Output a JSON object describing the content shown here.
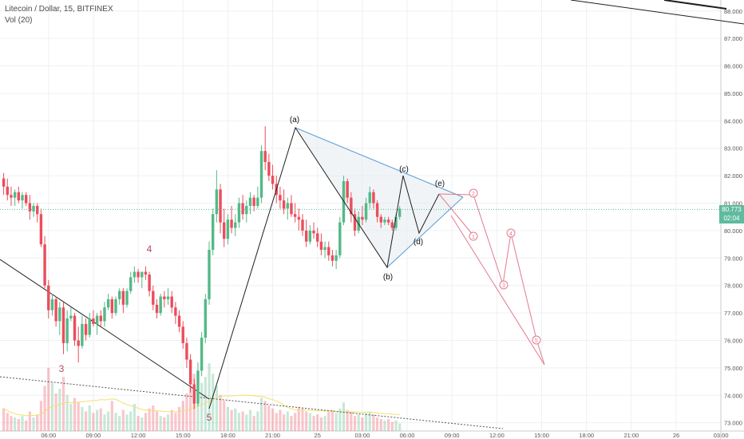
{
  "header": {
    "title": "Litecoin / Dollar, 15, BITFINEX",
    "volume_label": "Vol (20)"
  },
  "price_tags": {
    "last_price": "80.773",
    "countdown": "02:04",
    "color": "#5fba9e"
  },
  "colors": {
    "up": "#53b987",
    "down": "#eb4d5c",
    "wave_black": "#1f1f1f",
    "triangle_blue": "#5b9bd5",
    "projection_red": "#e4798d",
    "wave_label": "#b44a65",
    "vol_ma": "#f3e06c",
    "grid": "#eef0f3"
  },
  "chart_data": {
    "type": "candlestick",
    "title": "Litecoin / Dollar, 15, BITFINEX",
    "ylim": [
      72.7,
      88.4
    ],
    "y_ticks": [
      "73.000",
      "74.000",
      "75.000",
      "76.000",
      "77.000",
      "78.000",
      "79.000",
      "80.000",
      "81.000",
      "82.000",
      "83.000",
      "84.000",
      "85.000",
      "86.000",
      "87.000",
      "88.000"
    ],
    "y_tick_values": [
      73,
      74,
      75,
      76,
      77,
      78,
      79,
      80,
      81,
      82,
      83,
      84,
      85,
      86,
      87,
      88
    ],
    "x_ticks": [
      "06:00",
      "09:00",
      "12:00",
      "15:00",
      "18:00",
      "21:00",
      "25",
      "03:00",
      "06:00",
      "09:00",
      "12:00",
      "15:00",
      "18:00",
      "21:00",
      "26",
      "03:00"
    ],
    "x_tick_bars": [
      12,
      24,
      36,
      48,
      60,
      72,
      84,
      96,
      108,
      120,
      132,
      144,
      156,
      168,
      180,
      192
    ],
    "candles": [
      [
        81.9,
        82.1,
        81.3,
        81.6
      ],
      [
        81.6,
        81.9,
        81.1,
        81.3
      ],
      [
        81.3,
        81.6,
        80.9,
        81.2
      ],
      [
        81.2,
        81.5,
        80.9,
        81.4
      ],
      [
        81.4,
        81.6,
        81.0,
        81.1
      ],
      [
        81.1,
        81.4,
        80.8,
        81.3
      ],
      [
        81.3,
        81.4,
        80.9,
        81.0
      ],
      [
        81.0,
        81.3,
        80.4,
        80.7
      ],
      [
        80.7,
        81.0,
        80.5,
        80.9
      ],
      [
        80.9,
        81.0,
        80.3,
        80.6
      ],
      [
        80.6,
        80.8,
        79.4,
        79.5
      ],
      [
        79.5,
        79.8,
        77.9,
        78.0
      ],
      [
        78.0,
        78.2,
        76.8,
        77.1
      ],
      [
        77.1,
        77.7,
        76.9,
        77.5
      ],
      [
        77.5,
        77.6,
        76.5,
        76.7
      ],
      [
        76.7,
        77.4,
        76.2,
        77.2
      ],
      [
        77.2,
        77.4,
        75.5,
        75.9
      ],
      [
        75.9,
        77.1,
        75.6,
        76.8
      ],
      [
        76.8,
        77.2,
        76.7,
        76.9
      ],
      [
        76.9,
        77.0,
        75.8,
        76.0
      ],
      [
        76.0,
        76.5,
        75.2,
        75.8
      ],
      [
        75.8,
        76.9,
        75.7,
        76.6
      ],
      [
        76.6,
        76.8,
        76.0,
        76.2
      ],
      [
        76.2,
        77.0,
        76.1,
        76.8
      ],
      [
        76.8,
        77.1,
        76.5,
        76.6
      ],
      [
        76.6,
        77.0,
        76.2,
        76.9
      ],
      [
        76.9,
        77.1,
        76.5,
        76.7
      ],
      [
        76.7,
        77.4,
        76.5,
        77.2
      ],
      [
        77.2,
        77.7,
        77.1,
        77.5
      ],
      [
        77.5,
        77.6,
        76.8,
        77.0
      ],
      [
        77.0,
        77.6,
        76.9,
        77.5
      ],
      [
        77.5,
        77.9,
        77.3,
        77.8
      ],
      [
        77.8,
        77.9,
        77.0,
        77.3
      ],
      [
        77.3,
        77.9,
        77.2,
        77.8
      ],
      [
        77.8,
        78.5,
        77.7,
        78.3
      ],
      [
        78.3,
        78.7,
        78.1,
        78.5
      ],
      [
        78.5,
        78.6,
        78.1,
        78.3
      ],
      [
        78.3,
        78.5,
        77.9,
        78.5
      ],
      [
        78.5,
        78.7,
        78.2,
        78.4
      ],
      [
        78.4,
        78.5,
        77.6,
        77.8
      ],
      [
        77.8,
        78.0,
        77.1,
        77.3
      ],
      [
        77.3,
        77.5,
        76.8,
        77.0
      ],
      [
        77.0,
        77.7,
        76.9,
        77.6
      ],
      [
        77.6,
        77.8,
        77.2,
        77.5
      ],
      [
        77.5,
        77.9,
        77.3,
        77.6
      ],
      [
        77.6,
        77.8,
        77.0,
        77.2
      ],
      [
        77.2,
        77.4,
        76.6,
        76.9
      ],
      [
        76.9,
        77.1,
        76.3,
        76.5
      ],
      [
        76.5,
        76.7,
        75.7,
        75.9
      ],
      [
        75.9,
        76.1,
        75.0,
        75.3
      ],
      [
        75.3,
        75.5,
        74.1,
        74.4
      ],
      [
        74.4,
        74.6,
        73.5,
        73.7
      ],
      [
        73.7,
        75.2,
        73.6,
        74.9
      ],
      [
        74.9,
        76.3,
        74.7,
        76.1
      ],
      [
        76.1,
        77.7,
        75.9,
        77.5
      ],
      [
        77.5,
        79.6,
        77.3,
        79.3
      ],
      [
        79.3,
        80.8,
        79.1,
        80.6
      ],
      [
        80.6,
        82.2,
        80.3,
        81.5
      ],
      [
        81.5,
        81.7,
        79.9,
        80.3
      ],
      [
        80.3,
        80.8,
        79.4,
        79.7
      ],
      [
        79.7,
        80.6,
        79.5,
        80.4
      ],
      [
        80.4,
        80.9,
        79.9,
        80.1
      ],
      [
        80.1,
        80.6,
        79.8,
        80.3
      ],
      [
        80.3,
        81.2,
        80.1,
        81.0
      ],
      [
        81.0,
        81.3,
        80.4,
        80.6
      ],
      [
        80.6,
        81.1,
        80.3,
        80.9
      ],
      [
        80.9,
        81.4,
        80.6,
        81.2
      ],
      [
        81.2,
        81.3,
        80.7,
        80.9
      ],
      [
        80.9,
        81.6,
        80.8,
        81.2
      ],
      [
        81.2,
        83.1,
        81.0,
        82.9
      ],
      [
        82.9,
        83.8,
        82.2,
        82.5
      ],
      [
        82.5,
        82.8,
        81.8,
        82.0
      ],
      [
        82.0,
        82.4,
        81.5,
        81.7
      ],
      [
        81.7,
        82.0,
        81.0,
        81.3
      ],
      [
        81.3,
        81.6,
        80.8,
        81.1
      ],
      [
        81.1,
        81.5,
        80.6,
        80.8
      ],
      [
        80.8,
        81.2,
        80.4,
        81.0
      ],
      [
        81.0,
        81.3,
        80.5,
        80.6
      ],
      [
        80.6,
        81.0,
        80.3,
        80.5
      ],
      [
        80.5,
        80.8,
        80.0,
        80.4
      ],
      [
        80.4,
        80.6,
        79.8,
        80.0
      ],
      [
        80.0,
        80.4,
        79.4,
        79.6
      ],
      [
        79.6,
        80.2,
        79.5,
        80.0
      ],
      [
        80.0,
        80.3,
        79.7,
        79.9
      ],
      [
        79.9,
        80.1,
        79.4,
        79.6
      ],
      [
        79.6,
        79.9,
        79.1,
        79.3
      ],
      [
        79.3,
        79.6,
        79.0,
        79.4
      ],
      [
        79.4,
        79.6,
        78.9,
        79.1
      ],
      [
        79.1,
        79.3,
        78.7,
        78.9
      ],
      [
        78.9,
        79.3,
        78.6,
        79.1
      ],
      [
        79.1,
        80.5,
        79.0,
        80.3
      ],
      [
        80.3,
        82.0,
        80.2,
        81.8
      ],
      [
        81.8,
        81.9,
        81.0,
        81.2
      ],
      [
        81.2,
        81.4,
        80.3,
        80.6
      ],
      [
        80.6,
        80.8,
        79.8,
        80.0
      ],
      [
        80.0,
        80.7,
        79.9,
        80.5
      ],
      [
        80.5,
        80.9,
        80.2,
        80.4
      ],
      [
        80.4,
        81.2,
        80.3,
        81.0
      ],
      [
        81.0,
        81.6,
        80.8,
        81.4
      ],
      [
        81.4,
        81.5,
        80.8,
        81.0
      ],
      [
        81.0,
        81.1,
        80.3,
        80.5
      ],
      [
        80.5,
        80.6,
        80.1,
        80.3
      ],
      [
        80.3,
        80.5,
        80.2,
        80.4
      ],
      [
        80.4,
        80.5,
        80.2,
        80.3
      ],
      [
        80.3,
        80.4,
        80.0,
        80.1
      ],
      [
        80.1,
        80.6,
        80.0,
        80.5
      ],
      [
        80.5,
        80.9,
        80.4,
        80.8
      ]
    ],
    "volume": [
      1.5,
      1.2,
      1.0,
      0.9,
      0.8,
      1.0,
      0.7,
      1.3,
      0.9,
      1.1,
      2.0,
      3.0,
      4.2,
      3.2,
      2.5,
      2.8,
      3.6,
      2.4,
      1.8,
      2.2,
      1.9,
      1.6,
      1.3,
      1.7,
      1.2,
      1.4,
      1.5,
      1.1,
      1.3,
      2.0,
      1.2,
      1.0,
      1.4,
      1.1,
      1.3,
      1.8,
      1.0,
      0.9,
      1.2,
      1.5,
      1.7,
      1.3,
      1.0,
      0.9,
      1.1,
      1.4,
      1.2,
      1.6,
      2.0,
      2.5,
      3.0,
      3.8,
      2.6,
      3.2,
      3.6,
      4.5,
      3.8,
      3.0,
      2.4,
      2.0,
      1.6,
      1.4,
      1.5,
      1.2,
      1.3,
      1.1,
      1.4,
      1.0,
      1.3,
      2.2,
      2.0,
      1.7,
      1.5,
      1.2,
      1.4,
      1.1,
      1.3,
      1.0,
      1.2,
      1.6,
      1.5,
      1.3,
      1.2,
      1.0,
      1.1,
      0.9,
      1.0,
      1.3,
      1.4,
      1.2,
      1.5,
      1.9,
      1.4,
      1.3,
      1.0,
      1.1,
      0.9,
      1.2,
      1.3,
      1.1,
      0.9,
      0.8,
      0.7,
      0.8,
      0.6,
      0.7,
      0.5
    ],
    "wave_labels": {
      "a": "(a)",
      "b": "(b)",
      "c": "(c)",
      "d": "(d)",
      "e": "(e)",
      "three": "3",
      "four": "4",
      "five": "5",
      "p1": "1",
      "p2": "2",
      "p3": "3",
      "p4": "4",
      "p5": "5"
    }
  }
}
